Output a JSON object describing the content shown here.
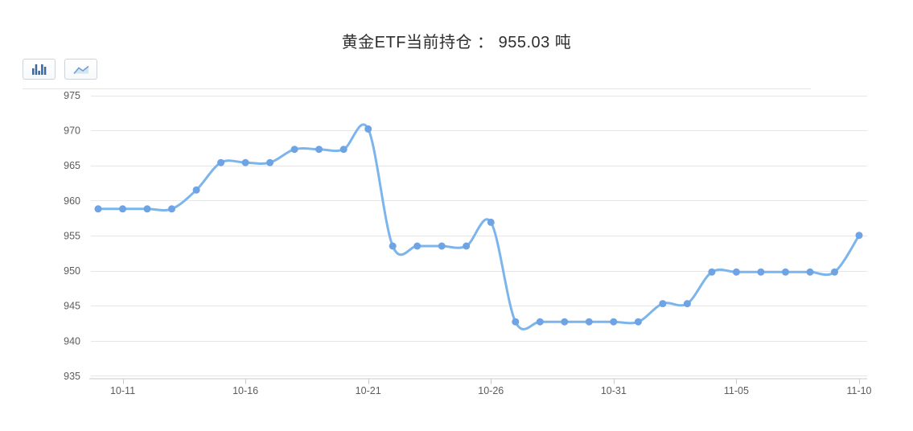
{
  "title": {
    "text": "黄金ETF当前持仓 ： 955.03 吨"
  },
  "toolbar": {
    "buttons": [
      {
        "icon": "bar-chart-icon",
        "type": "bar"
      },
      {
        "icon": "line-chart-icon",
        "type": "line"
      }
    ]
  },
  "chart_data": {
    "type": "line",
    "smooth": true,
    "title": "黄金ETF当前持仓 ： 955.03 吨",
    "current_value": "955.03",
    "unit": "吨",
    "x": [
      "10-10",
      "10-11",
      "10-12",
      "10-13",
      "10-14",
      "10-15",
      "10-16",
      "10-17",
      "10-18",
      "10-19",
      "10-20",
      "10-21",
      "10-22",
      "10-23",
      "10-24",
      "10-25",
      "10-26",
      "10-27",
      "10-28",
      "10-29",
      "10-30",
      "10-31",
      "11-01",
      "11-02",
      "11-03",
      "11-04",
      "11-05",
      "11-06",
      "11-07",
      "11-08",
      "11-09",
      "11-10"
    ],
    "values": [
      958.8,
      958.8,
      958.8,
      958.8,
      961.5,
      965.4,
      965.4,
      965.4,
      967.3,
      967.3,
      967.3,
      970.2,
      953.5,
      953.5,
      953.5,
      953.5,
      956.9,
      942.7,
      942.7,
      942.7,
      942.7,
      942.7,
      942.7,
      945.3,
      945.3,
      949.8,
      949.8,
      949.8,
      949.8,
      949.8,
      949.8,
      955.03
    ],
    "ylim": [
      935,
      975
    ],
    "y_ticks": [
      975,
      970,
      965,
      960,
      955,
      950,
      945,
      940,
      935
    ],
    "x_tick_labels": [
      "10-11",
      "10-16",
      "10-21",
      "10-26",
      "10-31",
      "11-05",
      "11-10"
    ],
    "x_tick_indices": [
      1,
      6,
      11,
      16,
      21,
      26,
      31
    ],
    "grid": true,
    "legend": "none",
    "colors": {
      "line": "#7cb5ec",
      "marker": "#6ea3e4",
      "grid": "#e6e6e6",
      "axis": "#c9c9c9",
      "label": "#5c5c5c",
      "title": "#2e2e2e",
      "icon_bar": "#3a689b",
      "icon_line_stroke": "#6fa1d0",
      "icon_line_fill": "#d3e4f5"
    }
  }
}
